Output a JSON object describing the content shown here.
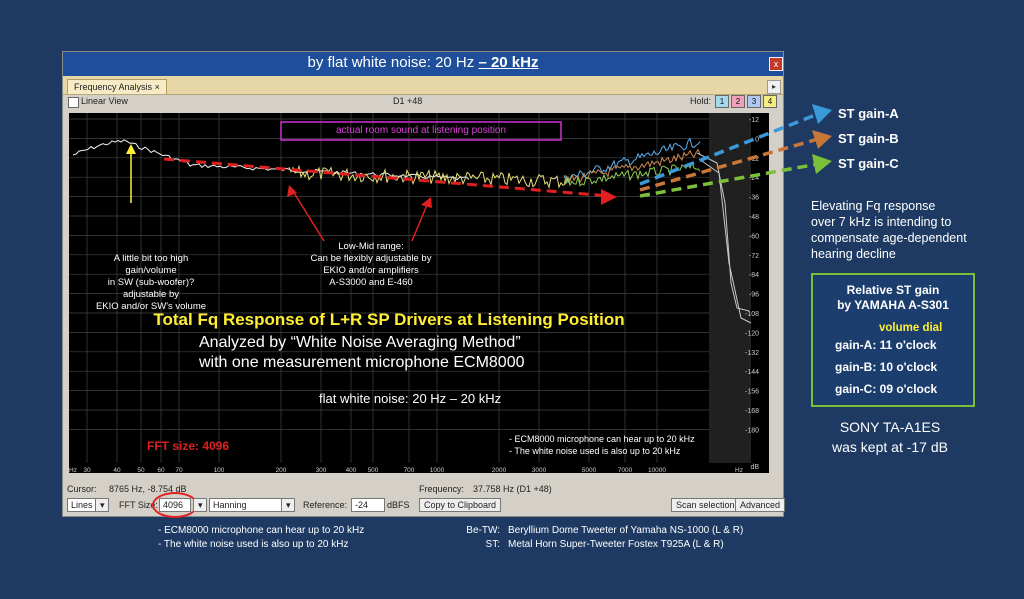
{
  "window": {
    "title_prefix": "by flat white noise: 20 Hz ",
    "title_emph": "– 20 kHz",
    "close_label": "x",
    "tab_label": "Frequency Analysis",
    "tab_close": "×",
    "tab_scroll": "▸"
  },
  "toolbar": {
    "linear_view": "Linear View",
    "channel": "D1 +48",
    "hold_label": "Hold:",
    "hold_buttons": [
      "1",
      "2",
      "3",
      "4"
    ]
  },
  "plot": {
    "legend_box": "actual room sound  at listening position",
    "y_ticks": [
      "-12",
      "0",
      "-12",
      "-24",
      "-36",
      "-48",
      "-60",
      "-72",
      "-84",
      "-96",
      "-108",
      "-120",
      "-132",
      "-144",
      "-156",
      "-168",
      "-180",
      "dB"
    ],
    "x_ticks": [
      "Hz",
      "30",
      "40",
      "50",
      "60",
      "70",
      "100",
      "200",
      "300",
      "400",
      "500",
      "700",
      "1000",
      "2000",
      "3000",
      "5000",
      "7000",
      "10000",
      "Hz"
    ],
    "annotation_sw": [
      "A little bit too high",
      "gain/volume",
      "in SW (sub-woofer)?",
      "adjustable by",
      "EKIO and/or SW's volume"
    ],
    "annotation_mid": [
      "Low-Mid range:",
      "Can be flexibly adjustable by",
      "EKIO and/or amplifiers",
      "A-S3000 and E-460"
    ],
    "headline": "Total Fq Response of L+R SP Drivers at Listening Position",
    "method_line1": "Analyzed by “White Noise Averaging Method”",
    "method_line2": "with one measurement microphone ECM8000",
    "noise_line": "flat white noise: 20 Hz – 20 kHz",
    "fft_label": "FFT size: 4096",
    "mic_note1": "- ECM8000 microphone can hear up to 20 kHz",
    "mic_note2": "- The white noise used is also up to 20 kHz"
  },
  "status": {
    "cursor_label": "Cursor:",
    "cursor_value": "8765 Hz, -8.754 dB",
    "frequency_label": "Frequency:",
    "frequency_value": "37.758 Hz (D1 +48)"
  },
  "controls": {
    "lines_select": "Lines",
    "fft_size_label": "FFT Size:",
    "fft_size_value": "4096",
    "window_select": "Hanning",
    "reference_label": "Reference:",
    "reference_value": "-24",
    "reference_unit": "dBFS",
    "copy_button": "Copy to Clipboard",
    "scan_button": "Scan selection",
    "advanced_button": "Advanced"
  },
  "right_panel": {
    "st_gain_a": "ST gain-A",
    "st_gain_b": "ST gain-B",
    "st_gain_c": "ST gain-C",
    "elevating_text": [
      "Elevating Fq response",
      "over 7 kHz is intending to",
      "compensate age-dependent",
      "hearing decline"
    ],
    "gain_box_title1": "Relative ST gain",
    "gain_box_title2": "by YAMAHA A-S301",
    "volume_dial": "volume dial",
    "gain_a": "gain-A: 11 o'clock",
    "gain_b": "gain-B: 10 o'clock",
    "gain_c": "gain-C: 09 o'clock",
    "sony_line1": "SONY TA-A1ES",
    "sony_line2": "was kept at -17 dB"
  },
  "footer": {
    "note1": "- ECM8000 microphone can hear up to 20 kHz",
    "note2": "- The white noise used is also up to 20 kHz",
    "betw_label": "Be-TW:",
    "betw_text": "Beryllium  Dome Tweeter of Yamaha  NS-1000  (L & R)",
    "st_label": "ST:",
    "st_text": "Metal Horn  Super-Tweeter  Fostex  T925A  (L & R)"
  },
  "colors": {
    "background": "#1e3a63",
    "arrow_a": "#3a9ad9",
    "arrow_b": "#c9763a",
    "arrow_c": "#7cbf3a",
    "trend_arrow": "#e02020",
    "headline": "#ffee33",
    "fft_label": "#e02020"
  }
}
